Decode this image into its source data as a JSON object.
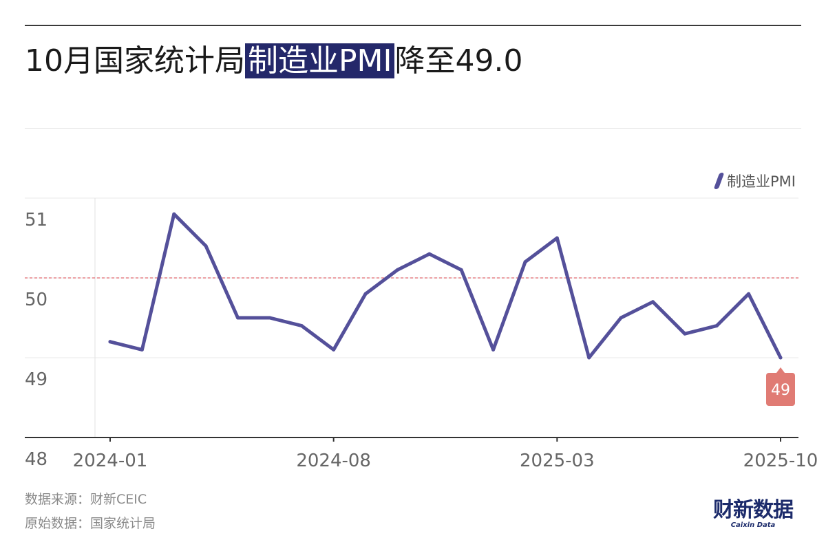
{
  "title": {
    "prefix": "10月国家统计局",
    "highlight": "制造业PMI",
    "suffix": "降至49.0"
  },
  "source": "数据来源：财新CEIC",
  "origin": "原始数据：国家统计局",
  "brand": {
    "cn": "财新数据",
    "en": "Caixin Data"
  },
  "colors": {
    "line": "#54509a",
    "reference": "#d9414a",
    "badge": "#e07b74",
    "title_highlight": "#24286a"
  },
  "chart_data": {
    "type": "line",
    "x": [
      "2024-01",
      "2024-02",
      "2024-03",
      "2024-04",
      "2024-05",
      "2024-06",
      "2024-07",
      "2024-08",
      "2024-09",
      "2024-10",
      "2024-11",
      "2024-12",
      "2025-01",
      "2025-02",
      "2025-03",
      "2025-04",
      "2025-05",
      "2025-06",
      "2025-07",
      "2025-08",
      "2025-09",
      "2025-10"
    ],
    "x_tick_labels": [
      "2024-01",
      "2024-08",
      "2025-03",
      "2025-10"
    ],
    "series": [
      {
        "name": "制造业PMI",
        "values": [
          49.2,
          49.1,
          50.8,
          50.4,
          49.5,
          49.5,
          49.4,
          49.1,
          49.8,
          50.1,
          50.3,
          50.1,
          49.1,
          50.2,
          50.5,
          49.0,
          49.5,
          49.7,
          49.3,
          49.4,
          49.8,
          49.0
        ]
      }
    ],
    "ylim": [
      48,
      51
    ],
    "y_ticks": [
      48,
      49,
      50,
      51
    ],
    "reference_line": 50,
    "last_value_label": "49",
    "legend_position": "top-right",
    "grid": "horizontal"
  }
}
